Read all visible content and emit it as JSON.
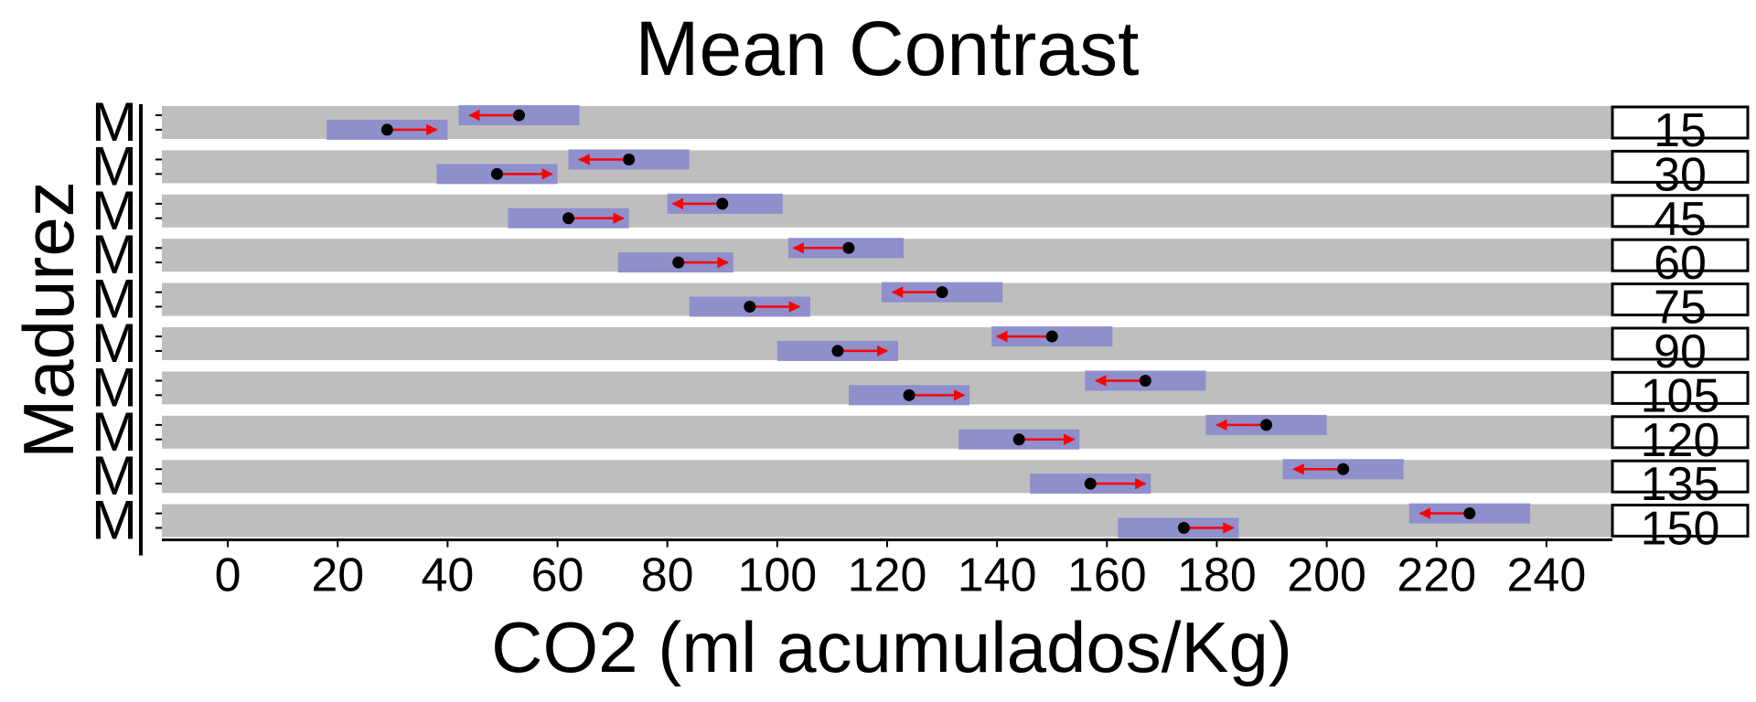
{
  "chart_data": {
    "type": "forest-dumbbell",
    "title": "Mean Contrast",
    "xlabel": "CO2 (ml acumulados/Kg)",
    "ylabel": "Madurez",
    "xlim": [
      -12,
      252
    ],
    "x_ticks": [
      0,
      20,
      40,
      60,
      80,
      100,
      120,
      140,
      160,
      180,
      200,
      220,
      240
    ],
    "y_level_label": "M",
    "colors": {
      "panel": "#bebebe",
      "interval": "#8c8ccc",
      "arrow": "#ff0000",
      "point": "#000000",
      "strip_border": "#000000"
    },
    "facets": [
      {
        "label": "15",
        "upper": {
          "point": 53,
          "arrow_to": 44,
          "interval": [
            42,
            64
          ]
        },
        "lower": {
          "point": 29,
          "arrow_to": 38,
          "interval": [
            18,
            40
          ]
        }
      },
      {
        "label": "30",
        "upper": {
          "point": 73,
          "arrow_to": 64,
          "interval": [
            62,
            84
          ]
        },
        "lower": {
          "point": 49,
          "arrow_to": 59,
          "interval": [
            38,
            60
          ]
        }
      },
      {
        "label": "45",
        "upper": {
          "point": 90,
          "arrow_to": 81,
          "interval": [
            80,
            101
          ]
        },
        "lower": {
          "point": 62,
          "arrow_to": 72,
          "interval": [
            51,
            73
          ]
        }
      },
      {
        "label": "60",
        "upper": {
          "point": 113,
          "arrow_to": 103,
          "interval": [
            102,
            123
          ]
        },
        "lower": {
          "point": 82,
          "arrow_to": 91,
          "interval": [
            71,
            92
          ]
        }
      },
      {
        "label": "75",
        "upper": {
          "point": 130,
          "arrow_to": 121,
          "interval": [
            119,
            141
          ]
        },
        "lower": {
          "point": 95,
          "arrow_to": 104,
          "interval": [
            84,
            106
          ]
        }
      },
      {
        "label": "90",
        "upper": {
          "point": 150,
          "arrow_to": 140,
          "interval": [
            139,
            161
          ]
        },
        "lower": {
          "point": 111,
          "arrow_to": 120,
          "interval": [
            100,
            122
          ]
        }
      },
      {
        "label": "105",
        "upper": {
          "point": 167,
          "arrow_to": 158,
          "interval": [
            156,
            178
          ]
        },
        "lower": {
          "point": 124,
          "arrow_to": 134,
          "interval": [
            113,
            135
          ]
        }
      },
      {
        "label": "120",
        "upper": {
          "point": 189,
          "arrow_to": 180,
          "interval": [
            178,
            200
          ]
        },
        "lower": {
          "point": 144,
          "arrow_to": 154,
          "interval": [
            133,
            155
          ]
        }
      },
      {
        "label": "135",
        "upper": {
          "point": 203,
          "arrow_to": 194,
          "interval": [
            192,
            214
          ]
        },
        "lower": {
          "point": 157,
          "arrow_to": 167,
          "interval": [
            146,
            168
          ]
        }
      },
      {
        "label": "150",
        "upper": {
          "point": 226,
          "arrow_to": 217,
          "interval": [
            215,
            237
          ]
        },
        "lower": {
          "point": 174,
          "arrow_to": 183,
          "interval": [
            162,
            184
          ]
        }
      }
    ]
  }
}
